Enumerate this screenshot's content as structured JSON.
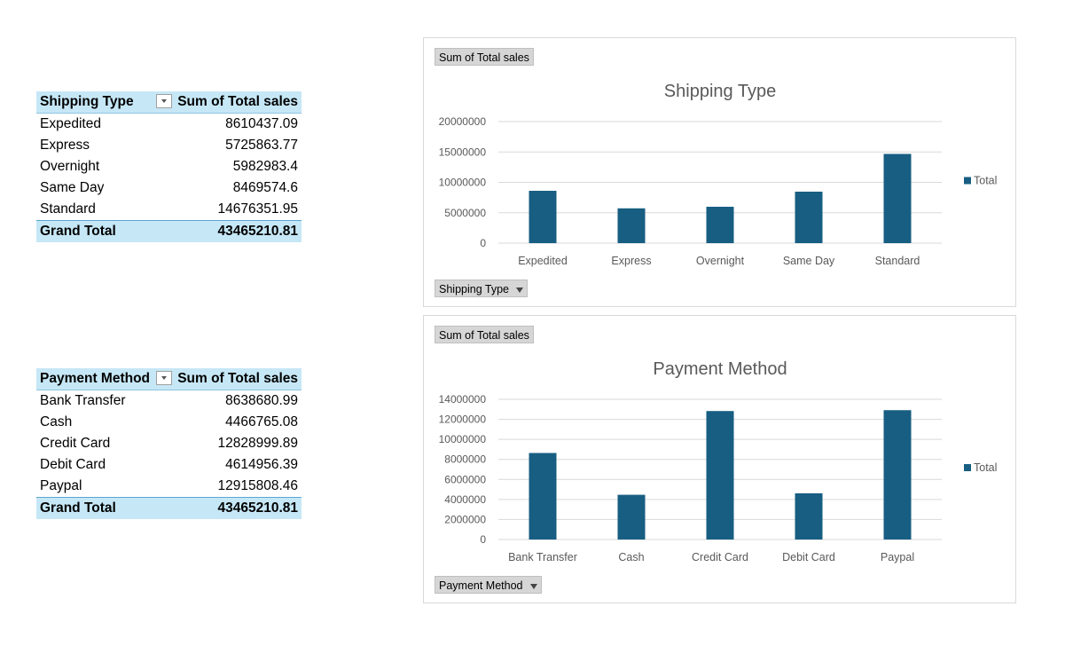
{
  "pivot_shipping": {
    "header": [
      "Shipping Type",
      "Sum of Total sales"
    ],
    "rows": [
      {
        "label": "Expedited",
        "value": "8610437.09"
      },
      {
        "label": "Express",
        "value": "5725863.77"
      },
      {
        "label": "Overnight",
        "value": "5982983.4"
      },
      {
        "label": "Same Day",
        "value": "8469574.6"
      },
      {
        "label": "Standard",
        "value": "14676351.95"
      }
    ],
    "total": {
      "label": "Grand Total",
      "value": "43465210.81"
    }
  },
  "pivot_payment": {
    "header": [
      "Payment Method",
      "Sum of Total sales"
    ],
    "rows": [
      {
        "label": "Bank Transfer",
        "value": "8638680.99"
      },
      {
        "label": "Cash",
        "value": "4466765.08"
      },
      {
        "label": "Credit Card",
        "value": "12828999.89"
      },
      {
        "label": "Debit Card",
        "value": "4614956.39"
      },
      {
        "label": "Paypal",
        "value": "12915808.46"
      }
    ],
    "total": {
      "label": "Grand Total",
      "value": "43465210.81"
    }
  },
  "chart_buttons": {
    "value_field": "Sum of Total sales",
    "shipping_axis_field": "Shipping Type",
    "payment_axis_field": "Payment Method"
  },
  "colors": {
    "bar": "#175e82",
    "header_fill": "#c6e7f6",
    "grid": "#d9d9d9"
  },
  "chart_data": [
    {
      "type": "bar",
      "title": "Shipping Type",
      "categories": [
        "Expedited",
        "Express",
        "Overnight",
        "Same Day",
        "Standard"
      ],
      "series": [
        {
          "name": "Total",
          "values": [
            8610437.09,
            5725863.77,
            5982983.4,
            8469574.6,
            14676351.95
          ]
        }
      ],
      "ylim": [
        0,
        20000000
      ],
      "yticks": [
        "0",
        "5000000",
        "10000000",
        "15000000",
        "20000000"
      ],
      "grid": true,
      "legend": "right"
    },
    {
      "type": "bar",
      "title": "Payment Method",
      "categories": [
        "Bank Transfer",
        "Cash",
        "Credit Card",
        "Debit Card",
        "Paypal"
      ],
      "series": [
        {
          "name": "Total",
          "values": [
            8638680.99,
            4466765.08,
            12828999.89,
            4614956.39,
            12915808.46
          ]
        }
      ],
      "ylim": [
        0,
        14000000
      ],
      "yticks": [
        "0",
        "2000000",
        "4000000",
        "6000000",
        "8000000",
        "10000000",
        "12000000",
        "14000000"
      ],
      "grid": true,
      "legend": "right"
    }
  ]
}
